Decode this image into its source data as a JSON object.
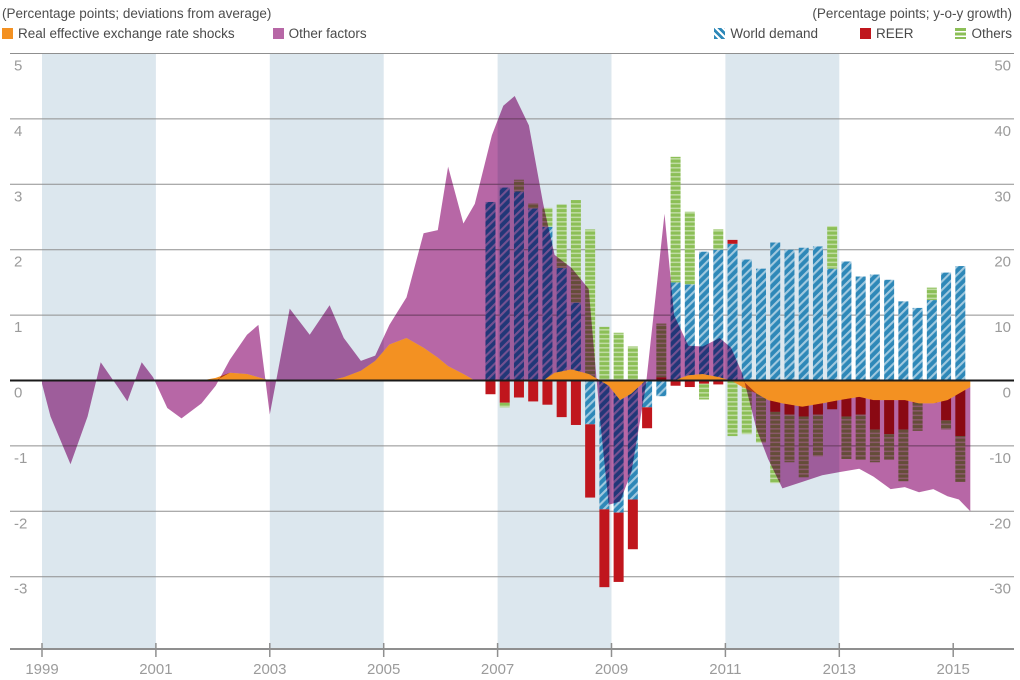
{
  "header": {
    "left_subtitle": "(Percentage points; deviations from average)",
    "right_subtitle": "(Percentage points; y-o-y growth)"
  },
  "colors": {
    "orange": "#F39122",
    "purple": "#B767A6",
    "blue": "#2E88B8",
    "red": "#C0161D",
    "green": "#8CBF57",
    "band": "#DCE7EE",
    "gridline": "#8F8F8F",
    "zero_line": "#1A1A1A",
    "axis": "#8F8F8F",
    "tick_label": "#9B9B9B",
    "header_text": "#4D4D4D"
  },
  "legend_left": [
    {
      "label": "Real effective exchange rate shocks",
      "color": "#F39122",
      "pattern": "solid"
    },
    {
      "label": "Other factors",
      "color": "#B767A6",
      "pattern": "solid"
    }
  ],
  "legend_right": [
    {
      "label": "World demand",
      "color": "#2E88B8",
      "pattern": "diagonal"
    },
    {
      "label": "REER",
      "color": "#C0161D",
      "pattern": "solid"
    },
    {
      "label": "Others",
      "color": "#8CBF57",
      "pattern": "horizontal"
    }
  ],
  "chart_data": {
    "type": "combo",
    "subtype": "stacked-area + stacked-bar, dual axis",
    "left_axis": {
      "title": "(Percentage points; deviations from average)",
      "ticks": [
        5,
        4,
        3,
        2,
        1,
        0,
        -1,
        -2,
        -3
      ],
      "range": [
        -4.1,
        5
      ]
    },
    "right_axis": {
      "title": "(Percentage points; y-o-y growth)",
      "ticks": [
        50,
        40,
        30,
        20,
        10,
        0,
        -10,
        -20,
        -30
      ],
      "range": [
        -41,
        50
      ]
    },
    "x_axis": {
      "tick_years": [
        1999,
        2001,
        2003,
        2005,
        2007,
        2009,
        2011,
        2013,
        2015
      ],
      "range": [
        1998.45,
        2016.1
      ]
    },
    "shaded_bands_years": [
      [
        1999,
        2001
      ],
      [
        2003,
        2005
      ],
      [
        2007,
        2009
      ],
      [
        2011,
        2013
      ]
    ],
    "grid": true,
    "legend_position": "top",
    "areas": {
      "axis": "left",
      "stacking": "sign-aware stacked (REER shocks first, Other factors on top)",
      "series": [
        {
          "name": "Real effective exchange rate shocks",
          "color": "#F39122"
        },
        {
          "name": "Other factors",
          "color": "#B767A6"
        }
      ],
      "points": [
        [
          1999.0,
          0,
          -0.05
        ],
        [
          1999.15,
          0,
          -0.55
        ],
        [
          1999.5,
          0,
          -1.28
        ],
        [
          1999.8,
          0,
          -0.55
        ],
        [
          2000.03,
          0,
          0.28
        ],
        [
          2000.3,
          0,
          -0.06
        ],
        [
          2000.5,
          0,
          -0.32
        ],
        [
          2000.75,
          0,
          0.28
        ],
        [
          2000.95,
          0,
          0.05
        ],
        [
          2001.2,
          0,
          -0.42
        ],
        [
          2001.45,
          0,
          -0.58
        ],
        [
          2001.8,
          0,
          -0.35
        ],
        [
          2002.05,
          0.04,
          -0.08
        ],
        [
          2002.3,
          0.12,
          0.2
        ],
        [
          2002.6,
          0.1,
          0.6
        ],
        [
          2002.8,
          0.05,
          0.8
        ],
        [
          2003.0,
          0,
          -0.52
        ],
        [
          2003.35,
          0,
          1.1
        ],
        [
          2003.7,
          0,
          0.7
        ],
        [
          2004.05,
          0,
          1.15
        ],
        [
          2004.3,
          0.05,
          0.6
        ],
        [
          2004.6,
          0.15,
          0.15
        ],
        [
          2004.85,
          0.3,
          0.08
        ],
        [
          2005.1,
          0.55,
          0.3
        ],
        [
          2005.4,
          0.65,
          0.62
        ],
        [
          2005.7,
          0.5,
          1.75
        ],
        [
          2005.95,
          0.35,
          1.95
        ],
        [
          2006.13,
          0.22,
          3.05
        ],
        [
          2006.4,
          0.1,
          2.3
        ],
        [
          2006.6,
          0,
          2.7
        ],
        [
          2006.9,
          0,
          3.75
        ],
        [
          2007.1,
          0,
          4.2
        ],
        [
          2007.3,
          0,
          4.35
        ],
        [
          2007.55,
          0,
          3.9
        ],
        [
          2007.8,
          0,
          2.7
        ],
        [
          2008.0,
          0.12,
          1.8
        ],
        [
          2008.3,
          0.17,
          1.55
        ],
        [
          2008.6,
          0.1,
          1.3
        ],
        [
          2008.8,
          0,
          -0.6
        ],
        [
          2008.95,
          -0.08,
          -1.82
        ],
        [
          2009.15,
          -0.3,
          -1.55
        ],
        [
          2009.35,
          -0.2,
          -1.2
        ],
        [
          2009.6,
          0,
          -0.1
        ],
        [
          2009.8,
          0,
          1.5
        ],
        [
          2009.93,
          0,
          2.55
        ],
        [
          2010.1,
          0,
          1.0
        ],
        [
          2010.35,
          0.08,
          0.45
        ],
        [
          2010.6,
          0.1,
          0.42
        ],
        [
          2010.9,
          0.05,
          0.6
        ],
        [
          2011.1,
          0,
          0.5
        ],
        [
          2011.3,
          -0.1,
          0.1
        ],
        [
          2011.55,
          -0.2,
          -0.55
        ],
        [
          2011.75,
          -0.3,
          -0.9
        ],
        [
          2012.0,
          -0.35,
          -1.3
        ],
        [
          2012.35,
          -0.4,
          -1.15
        ],
        [
          2012.7,
          -0.35,
          -1.1
        ],
        [
          2013.0,
          -0.3,
          -1.1
        ],
        [
          2013.35,
          -0.25,
          -1.1
        ],
        [
          2013.6,
          -0.3,
          -1.17
        ],
        [
          2013.9,
          -0.3,
          -1.36
        ],
        [
          2014.15,
          -0.3,
          -1.33
        ],
        [
          2014.4,
          -0.35,
          -1.36
        ],
        [
          2014.65,
          -0.35,
          -1.31
        ],
        [
          2014.9,
          -0.3,
          -1.47
        ],
        [
          2015.1,
          -0.2,
          -1.62
        ],
        [
          2015.3,
          -0.1,
          -1.9
        ]
      ]
    },
    "bars": {
      "axis": "right",
      "stacking": "sign-aware stacked in order: World demand, REER, Others",
      "start_quarter": "2006Q4",
      "quarters": [
        "2006Q4",
        "2007Q1",
        "2007Q2",
        "2007Q3",
        "2007Q4",
        "2008Q1",
        "2008Q2",
        "2008Q3",
        "2008Q4",
        "2009Q1",
        "2009Q2",
        "2009Q3",
        "2009Q4",
        "2010Q1",
        "2010Q2",
        "2010Q3",
        "2010Q4",
        "2011Q1",
        "2011Q2",
        "2011Q3",
        "2011Q4",
        "2012Q1",
        "2012Q2",
        "2012Q3",
        "2012Q4",
        "2013Q1",
        "2013Q2",
        "2013Q3",
        "2013Q4",
        "2014Q1",
        "2014Q2",
        "2014Q3",
        "2014Q4",
        "2015Q1"
      ],
      "series": [
        {
          "name": "World demand",
          "color": "#2E88B8",
          "pattern": "diagonal",
          "values": [
            27.3,
            29.5,
            28.9,
            26.3,
            23.5,
            17.2,
            11.9,
            -6.7,
            -19.7,
            -20.2,
            -18.2,
            -4.1,
            -2.4,
            15.0,
            14.7,
            19.7,
            20.0,
            20.9,
            18.5,
            17.1,
            21.1,
            20.0,
            20.3,
            20.5,
            17.1,
            18.2,
            15.9,
            16.2,
            15.4,
            12.1,
            11.1,
            12.3,
            16.5,
            17.5
          ]
        },
        {
          "name": "REER",
          "color": "#C0161D",
          "pattern": "solid",
          "values": [
            -2.1,
            -3.4,
            -2.6,
            -3.2,
            -3.7,
            -5.6,
            -6.8,
            -11.2,
            -11.9,
            -10.6,
            -7.6,
            -3.2,
            0.5,
            -0.8,
            -1.0,
            -0.5,
            -0.6,
            0.6,
            -0.2,
            -0.4,
            -4.8,
            -5.2,
            -5.5,
            -5.2,
            -4.4,
            -5.5,
            -5.2,
            -7.5,
            -8.2,
            -7.5,
            -3.4,
            -3.4,
            -6.1,
            -8.5
          ]
        },
        {
          "name": "Others",
          "color": "#8CBF57",
          "pattern": "horizontal",
          "values": [
            0,
            -0.7,
            1.8,
            0.8,
            2.9,
            9.7,
            15.7,
            23.1,
            8.2,
            7.3,
            5.2,
            0,
            8.2,
            19.2,
            11.1,
            -2.4,
            3.1,
            -8.5,
            -8.0,
            -9.1,
            -10.9,
            -7.3,
            -9.3,
            -6.4,
            6.5,
            -6.5,
            -6.9,
            -5.0,
            -3.9,
            -7.9,
            -4.3,
            1.9,
            -1.4,
            -7.0
          ]
        }
      ]
    }
  }
}
